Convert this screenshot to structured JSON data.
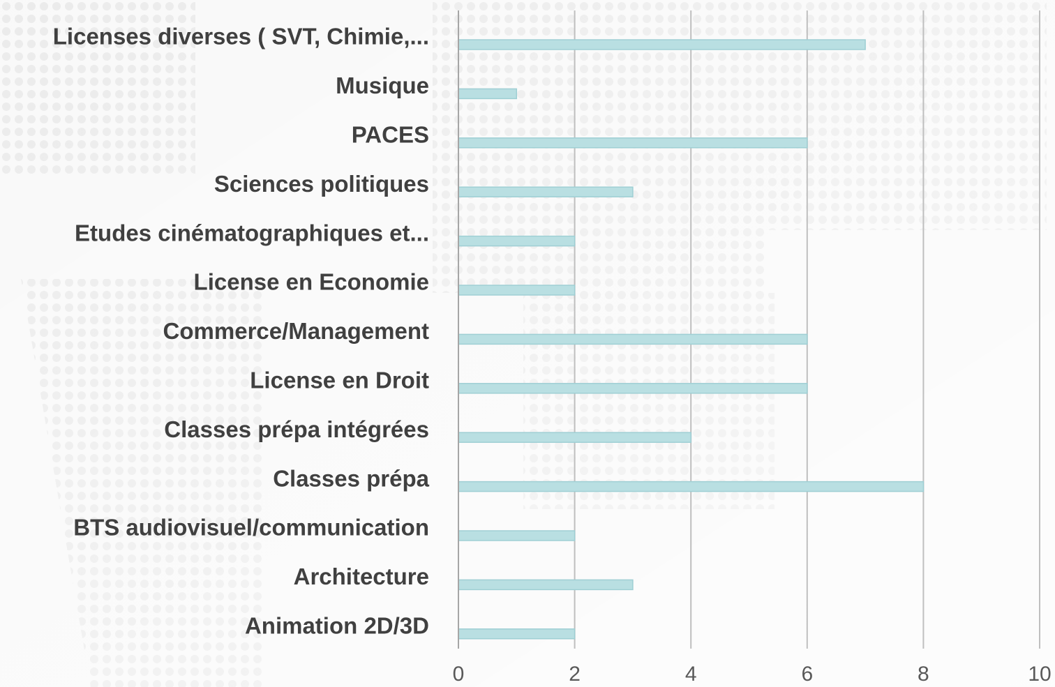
{
  "chart_data": {
    "type": "hbar",
    "categories": [
      "Licenses diverses ( SVT, Chimie,...",
      "Musique",
      "PACES",
      "Sciences politiques",
      "Etudes cinématographiques et...",
      "License en Economie",
      "Commerce/Management",
      "License en Droit",
      "Classes prépa intégrées",
      "Classes prépa",
      "BTS audiovisuel/communication",
      "Architecture",
      "Animation 2D/3D"
    ],
    "values": [
      7,
      1,
      6,
      3,
      2,
      2,
      6,
      6,
      4,
      8,
      2,
      3,
      2
    ],
    "color": "#b9dfe2",
    "xlim": [
      0,
      10
    ],
    "xticks": [
      0,
      2,
      4,
      6,
      8,
      10
    ],
    "grid": true
  }
}
